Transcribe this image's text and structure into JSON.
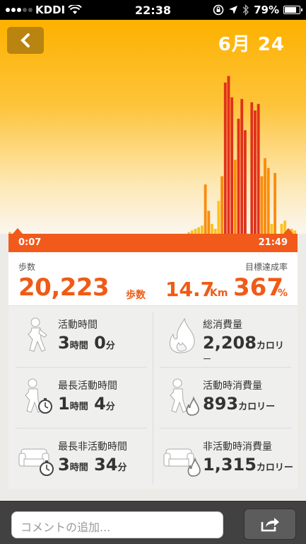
{
  "status_bar": {
    "carrier": "KDDI",
    "time": "22:38",
    "battery": "79%",
    "battery_level": 0.79
  },
  "header": {
    "back_icon": "chevron-left-icon",
    "date": "6月 24"
  },
  "colors": {
    "accent": "#ef5b16",
    "bar_dark": "#e0321a",
    "bar_mid": "#fb8c0c",
    "bar_light": "#fbc21e"
  },
  "chart_data": {
    "type": "bar",
    "title": "",
    "xlabel": "",
    "ylabel": "",
    "x_range": [
      "0:07",
      "21:49"
    ],
    "ylim": [
      0,
      100
    ],
    "grid": false,
    "series": [
      {
        "values": [
          1,
          0,
          0,
          0,
          0,
          0,
          0,
          0,
          0,
          0,
          0,
          0,
          0,
          0,
          0,
          0,
          0,
          0,
          0,
          0,
          0,
          0,
          0,
          0,
          0,
          0,
          0,
          0,
          0,
          0,
          0,
          0,
          0,
          0,
          0,
          0,
          0,
          0,
          0,
          0,
          0,
          0,
          0,
          0,
          0,
          0,
          0,
          0,
          0,
          0,
          0,
          0,
          0,
          0,
          1,
          2,
          3,
          4,
          5,
          30,
          14,
          6,
          3,
          20,
          35,
          92,
          96,
          83,
          45,
          70,
          82,
          63,
          0,
          80,
          75,
          79,
          35,
          46,
          40,
          6,
          37,
          0,
          6,
          8,
          3,
          3,
          2
        ]
      }
    ],
    "levels": [
      0,
      0,
      0,
      0,
      0,
      0,
      0,
      0,
      0,
      0,
      0,
      0,
      0,
      0,
      0,
      0,
      0,
      0,
      0,
      0,
      0,
      0,
      0,
      0,
      0,
      0,
      0,
      0,
      0,
      0,
      0,
      0,
      0,
      0,
      0,
      0,
      0,
      0,
      0,
      0,
      0,
      0,
      0,
      0,
      0,
      0,
      0,
      0,
      0,
      0,
      0,
      0,
      0,
      0,
      0,
      0,
      0,
      0,
      0,
      1,
      1,
      0,
      0,
      0,
      1,
      2,
      2,
      2,
      1,
      2,
      2,
      2,
      0,
      2,
      2,
      2,
      1,
      1,
      1,
      0,
      1,
      0,
      0,
      0,
      0,
      0,
      0
    ]
  },
  "timeline": {
    "start": "0:07",
    "end": "21:49"
  },
  "summary": {
    "steps_label": "歩数",
    "goal_label": "目標達成率",
    "steps": "20,223",
    "steps_unit": "歩数",
    "distance": "14.7",
    "distance_unit": "Km",
    "goal_pct": "367",
    "goal_unit": "%"
  },
  "stats": {
    "active_time": {
      "title": "活動時間",
      "h": "3",
      "h_unit": "時間",
      "m": "0",
      "m_unit": "分",
      "icon": "walking-person-icon"
    },
    "longest_active": {
      "title": "最長活動時間",
      "h": "1",
      "h_unit": "時間",
      "m": "4",
      "m_unit": "分",
      "icon": "walking-person-stopwatch-icon"
    },
    "longest_idle": {
      "title": "最長非活動時間",
      "h": "3",
      "h_unit": "時間",
      "m": "34",
      "m_unit": "分",
      "icon": "sofa-stopwatch-icon"
    },
    "total_burn": {
      "title": "総消費量",
      "value": "2,208",
      "unit_a": "カロリ",
      "unit_b": "ー",
      "icon": "flame-icon"
    },
    "active_burn": {
      "title": "活動時消費量",
      "value": "893",
      "unit": "カロリー",
      "icon": "walking-person-flame-icon"
    },
    "idle_burn": {
      "title": "非活動時消費量",
      "value": "1,315",
      "unit": "カロリー",
      "icon": "sofa-flame-icon"
    }
  },
  "bottom_bar": {
    "comment_placeholder": "コメントの追加...",
    "share_icon": "share-icon"
  }
}
